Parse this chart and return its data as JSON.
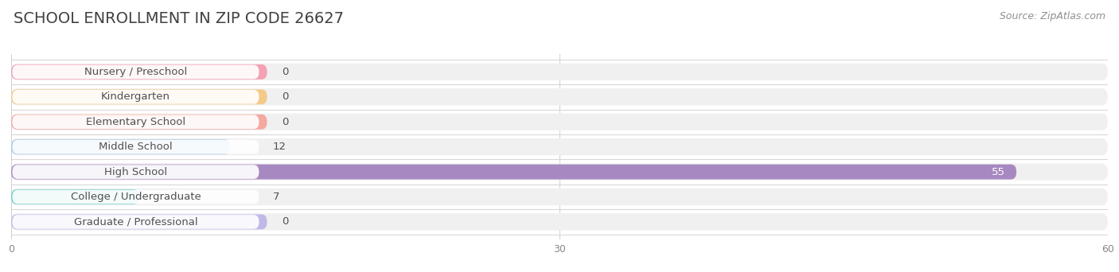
{
  "title": "SCHOOL ENROLLMENT IN ZIP CODE 26627",
  "source": "Source: ZipAtlas.com",
  "categories": [
    "Nursery / Preschool",
    "Kindergarten",
    "Elementary School",
    "Middle School",
    "High School",
    "College / Undergraduate",
    "Graduate / Professional"
  ],
  "values": [
    0,
    0,
    0,
    12,
    55,
    7,
    0
  ],
  "bar_colors": [
    "#f4a0b5",
    "#f5c98a",
    "#f4a8a0",
    "#a8c8e8",
    "#a888c0",
    "#6eccc8",
    "#c0b8e8"
  ],
  "bar_bg_color": "#f0f0f0",
  "label_bg_color": "#ffffff",
  "xlim": [
    0,
    60
  ],
  "xticks": [
    0,
    30,
    60
  ],
  "title_fontsize": 14,
  "source_fontsize": 9,
  "label_fontsize": 9.5,
  "value_fontsize": 9.5,
  "bar_height": 0.68,
  "figsize": [
    14.06,
    3.42
  ],
  "dpi": 100,
  "fig_bg": "#ffffff",
  "ax_bg": "#ffffff",
  "separator_color": "#d8d8d8",
  "title_color": "#404040",
  "label_color": "#505050",
  "value_color": "#505050",
  "value_white_color": "#ffffff",
  "source_color": "#909090"
}
